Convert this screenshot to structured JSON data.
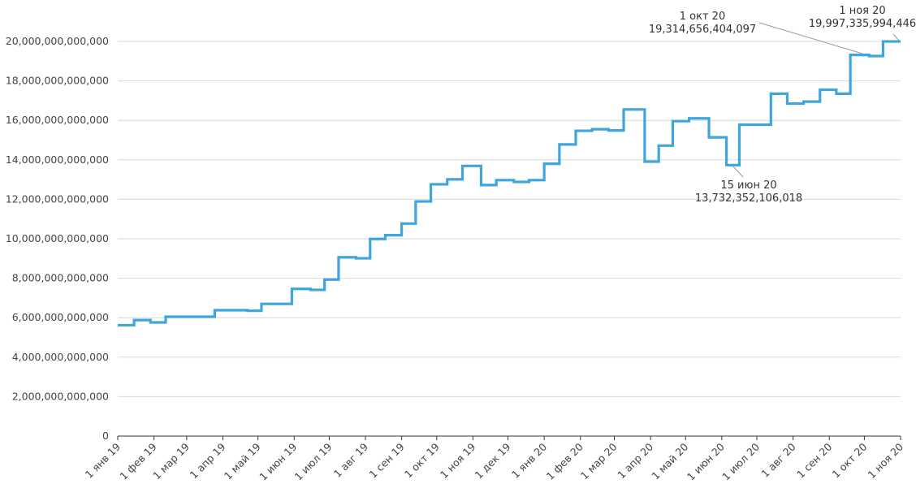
{
  "chart_data": {
    "type": "step-line",
    "x": [
      "2019-01-01",
      "2019-01-15",
      "2019-01-29",
      "2019-02-11",
      "2019-03-25",
      "2019-04-22",
      "2019-05-04",
      "2019-05-30",
      "2019-06-15",
      "2019-06-27",
      "2019-07-09",
      "2019-07-24",
      "2019-08-05",
      "2019-08-18",
      "2019-09-01",
      "2019-09-13",
      "2019-09-26",
      "2019-10-10",
      "2019-10-23",
      "2019-11-08",
      "2019-11-21",
      "2019-12-06",
      "2019-12-19",
      "2020-01-01",
      "2020-01-14",
      "2020-01-28",
      "2020-02-11",
      "2020-02-25",
      "2020-03-09",
      "2020-03-27",
      "2020-04-08",
      "2020-04-20",
      "2020-05-04",
      "2020-05-21",
      "2020-06-05",
      "2020-06-16",
      "2020-07-13",
      "2020-07-27",
      "2020-08-10",
      "2020-08-24",
      "2020-09-07",
      "2020-09-19",
      "2020-10-05",
      "2020-10-17",
      "2020-11-01"
    ],
    "series": [
      {
        "color": "#3ea6dc",
        "values": [
          5620000000000,
          5880000000000,
          5760000000000,
          6050000000000,
          6380000000000,
          6350000000000,
          6700000000000,
          7460000000000,
          7410000000000,
          7930000000000,
          9060000000000,
          9010000000000,
          9990000000000,
          10180000000000,
          10770000000000,
          11890000000000,
          12760000000000,
          13010000000000,
          13690000000000,
          12720000000000,
          12970000000000,
          12880000000000,
          12970000000000,
          13800000000000,
          14780000000000,
          15470000000000,
          15550000000000,
          15490000000000,
          16550000000000,
          13910000000000,
          14720000000000,
          15960000000000,
          16100000000000,
          15140000000000,
          13732352106018,
          15780000000000,
          17350000000000,
          16850000000000,
          16950000000000,
          17550000000000,
          17350000000000,
          19314656404097,
          19260000000000,
          19997335994446,
          19997335994446
        ]
      }
    ],
    "xlim": [
      "2019-01-01",
      "2020-11-01"
    ],
    "xticks": [
      {
        "value": "2019-01-01",
        "label": "1 янв 19"
      },
      {
        "value": "2019-02-01",
        "label": "1 фев 19"
      },
      {
        "value": "2019-03-01",
        "label": "1 мар 19"
      },
      {
        "value": "2019-04-01",
        "label": "1 апр 19"
      },
      {
        "value": "2019-05-01",
        "label": "1 май 19"
      },
      {
        "value": "2019-06-01",
        "label": "1 июн 19"
      },
      {
        "value": "2019-07-01",
        "label": "1 июл 19"
      },
      {
        "value": "2019-08-01",
        "label": "1 авг 19"
      },
      {
        "value": "2019-09-01",
        "label": "1 сен 19"
      },
      {
        "value": "2019-10-01",
        "label": "1 окт 19"
      },
      {
        "value": "2019-11-01",
        "label": "1 ноя 19"
      },
      {
        "value": "2019-12-01",
        "label": "1 дек 19"
      },
      {
        "value": "2020-01-01",
        "label": "1 янв 20"
      },
      {
        "value": "2020-02-01",
        "label": "1 фев 20"
      },
      {
        "value": "2020-03-01",
        "label": "1 мар 20"
      },
      {
        "value": "2020-04-01",
        "label": "1 апр 20"
      },
      {
        "value": "2020-05-01",
        "label": "1 май 20"
      },
      {
        "value": "2020-06-01",
        "label": "1 июн 20"
      },
      {
        "value": "2020-07-01",
        "label": "1 июл 20"
      },
      {
        "value": "2020-08-01",
        "label": "1 авг 20"
      },
      {
        "value": "2020-09-01",
        "label": "1 сен 20"
      },
      {
        "value": "2020-10-01",
        "label": "1 окт 20"
      },
      {
        "value": "2020-11-01",
        "label": "1 ноя 20"
      }
    ],
    "ylim": [
      0,
      20000000000000
    ],
    "yticks": [
      0,
      {
        "value": 2000000000000,
        "label": "2,000,000,000,000"
      },
      {
        "value": 4000000000000,
        "label": "4,000,000,000,000"
      },
      {
        "value": 6000000000000,
        "label": "6,000,000,000,000"
      },
      {
        "value": 8000000000000,
        "label": "8,000,000,000,000"
      },
      {
        "value": 10000000000000,
        "label": "10,000,000,000,000"
      },
      {
        "value": 12000000000000,
        "label": "12,000,000,000,000"
      },
      {
        "value": 14000000000000,
        "label": "14,000,000,000,000"
      },
      {
        "value": 16000000000000,
        "label": "16,000,000,000,000"
      },
      {
        "value": 18000000000000,
        "label": "18,000,000,000,000"
      },
      {
        "value": 20000000000000,
        "label": "20,000,000,000,000"
      }
    ],
    "grid": true,
    "annotations": [
      {
        "date": "1 окт 20",
        "text": "19,314,656,404,097"
      },
      {
        "date": "1 ноя 20",
        "text": "19,997,335,994,446"
      },
      {
        "date": "15 июн 20",
        "text": "13,732,352,106,018"
      }
    ]
  }
}
